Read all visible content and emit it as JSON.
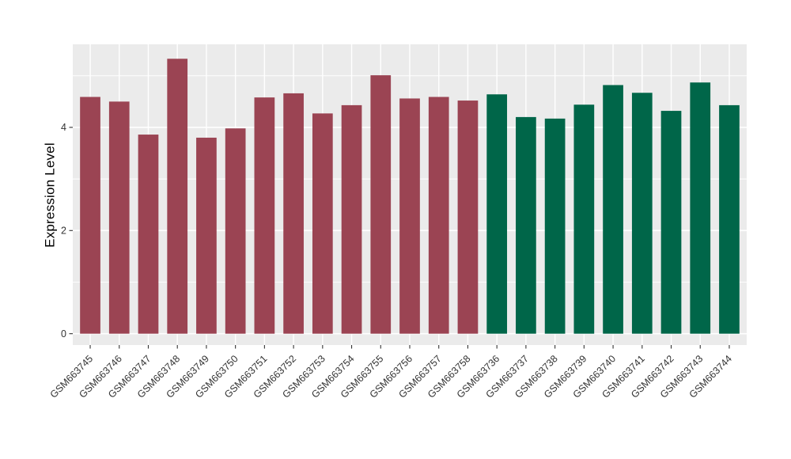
{
  "chart_data": {
    "type": "bar",
    "title": "",
    "xlabel": "",
    "ylabel": "Expression Level",
    "yticks": [
      0,
      2,
      4
    ],
    "minor_gridlines": [
      1,
      3,
      5
    ],
    "ylim": [
      -0.22,
      5.61
    ],
    "grid": true,
    "legend_position": "none",
    "bar_width_fraction": 0.7,
    "colors": {
      "group_red": "#9B4453",
      "group_green": "#006649",
      "panel_background": "#EBEBEB",
      "gridline": "#FFFFFF",
      "tick_text": "#333333",
      "axis_title": "#000000"
    },
    "bars": [
      {
        "label": "GSM663745",
        "value": 4.59,
        "color": "#9B4453"
      },
      {
        "label": "GSM663746",
        "value": 4.5,
        "color": "#9B4453"
      },
      {
        "label": "GSM663747",
        "value": 3.86,
        "color": "#9B4453"
      },
      {
        "label": "GSM663748",
        "value": 5.33,
        "color": "#9B4453"
      },
      {
        "label": "GSM663749",
        "value": 3.8,
        "color": "#9B4453"
      },
      {
        "label": "GSM663750",
        "value": 3.98,
        "color": "#9B4453"
      },
      {
        "label": "GSM663751",
        "value": 4.58,
        "color": "#9B4453"
      },
      {
        "label": "GSM663752",
        "value": 4.66,
        "color": "#9B4453"
      },
      {
        "label": "GSM663753",
        "value": 4.27,
        "color": "#9B4453"
      },
      {
        "label": "GSM663754",
        "value": 4.43,
        "color": "#9B4453"
      },
      {
        "label": "GSM663755",
        "value": 5.01,
        "color": "#9B4453"
      },
      {
        "label": "GSM663756",
        "value": 4.56,
        "color": "#9B4453"
      },
      {
        "label": "GSM663757",
        "value": 4.59,
        "color": "#9B4453"
      },
      {
        "label": "GSM663758",
        "value": 4.52,
        "color": "#9B4453"
      },
      {
        "label": "GSM663736",
        "value": 4.64,
        "color": "#006649"
      },
      {
        "label": "GSM663737",
        "value": 4.2,
        "color": "#006649"
      },
      {
        "label": "GSM663738",
        "value": 4.17,
        "color": "#006649"
      },
      {
        "label": "GSM663739",
        "value": 4.44,
        "color": "#006649"
      },
      {
        "label": "GSM663740",
        "value": 4.82,
        "color": "#006649"
      },
      {
        "label": "GSM663741",
        "value": 4.67,
        "color": "#006649"
      },
      {
        "label": "GSM663742",
        "value": 4.32,
        "color": "#006649"
      },
      {
        "label": "GSM663743",
        "value": 4.87,
        "color": "#006649"
      },
      {
        "label": "GSM663744",
        "value": 4.43,
        "color": "#006649"
      }
    ]
  }
}
